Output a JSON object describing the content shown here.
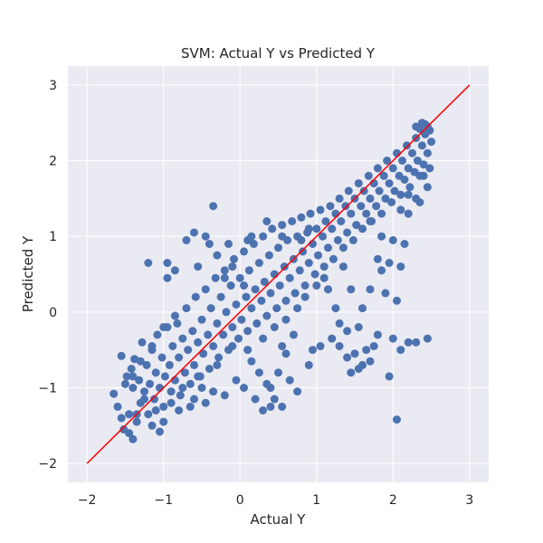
{
  "chart_data": {
    "type": "scatter",
    "title": "SVM: Actual Y vs Predicted Y",
    "xlabel": "Actual Y",
    "ylabel": "Predicted Y",
    "xlim": [
      -2.25,
      3.25
    ],
    "ylim": [
      -2.25,
      3.25
    ],
    "xticks": [
      -2,
      -1,
      0,
      1,
      2,
      3
    ],
    "yticks": [
      -2,
      -1,
      0,
      1,
      2,
      3
    ],
    "xtick_labels": [
      "−2",
      "−1",
      "0",
      "1",
      "2",
      "3"
    ],
    "ytick_labels": [
      "−2",
      "−1",
      "0",
      "1",
      "2",
      "3"
    ],
    "grid": true,
    "colors": {
      "background": "#eaeaf2",
      "grid": "#ffffff",
      "points": "#4c72b0",
      "line": "#ff0000"
    },
    "reference_line": {
      "x": [
        -2,
        3
      ],
      "y": [
        -2,
        3
      ]
    },
    "series": [
      {
        "points": [
          [
            -1.65,
            -1.08
          ],
          [
            -1.6,
            -1.25
          ],
          [
            -1.55,
            -0.58
          ],
          [
            -1.52,
            -1.55
          ],
          [
            -1.48,
            -0.85
          ],
          [
            -1.45,
            -1.35
          ],
          [
            -1.42,
            -0.75
          ],
          [
            -1.4,
            -1.0
          ],
          [
            -1.38,
            -0.62
          ],
          [
            -1.35,
            -1.45
          ],
          [
            -1.32,
            -0.9
          ],
          [
            -1.3,
            -1.2
          ],
          [
            -1.28,
            -0.4
          ],
          [
            -1.25,
            -1.05
          ],
          [
            -1.22,
            -0.7
          ],
          [
            -1.2,
            -1.35
          ],
          [
            -1.18,
            -0.95
          ],
          [
            -1.15,
            -0.5
          ],
          [
            -1.12,
            -1.15
          ],
          [
            -1.1,
            -0.8
          ],
          [
            -1.08,
            -0.3
          ],
          [
            -1.05,
            -1.0
          ],
          [
            -1.02,
            -0.6
          ],
          [
            -1.0,
            -1.25
          ],
          [
            -0.98,
            -0.85
          ],
          [
            -0.95,
            -0.2
          ],
          [
            -0.92,
            -0.7
          ],
          [
            -0.9,
            -1.05
          ],
          [
            -0.88,
            -0.45
          ],
          [
            -0.85,
            -0.9
          ],
          [
            -0.82,
            -0.15
          ],
          [
            -0.8,
            -0.6
          ],
          [
            -0.78,
            -1.1
          ],
          [
            -0.75,
            -0.35
          ],
          [
            -0.72,
            -0.8
          ],
          [
            -0.7,
            0.05
          ],
          [
            -0.68,
            -0.5
          ],
          [
            -0.65,
            -0.95
          ],
          [
            -0.62,
            -0.25
          ],
          [
            -0.6,
            -0.7
          ],
          [
            -0.58,
            0.2
          ],
          [
            -0.55,
            -0.4
          ],
          [
            -0.52,
            -0.85
          ],
          [
            -0.5,
            -0.1
          ],
          [
            -0.48,
            -0.55
          ],
          [
            -0.45,
            0.3
          ],
          [
            -0.42,
            -0.3
          ],
          [
            -0.4,
            -0.75
          ],
          [
            -0.38,
            0.05
          ],
          [
            -0.35,
            -0.45
          ],
          [
            -0.32,
            0.45
          ],
          [
            -0.3,
            -0.15
          ],
          [
            -0.28,
            -0.6
          ],
          [
            -0.25,
            0.2
          ],
          [
            -0.22,
            -0.3
          ],
          [
            -0.2,
            0.55
          ],
          [
            -0.18,
            0.0
          ],
          [
            -0.15,
            -0.5
          ],
          [
            -0.12,
            0.35
          ],
          [
            -0.1,
            -0.2
          ],
          [
            -0.08,
            0.7
          ],
          [
            -0.05,
            0.1
          ],
          [
            -0.02,
            -0.35
          ],
          [
            0.0,
            0.45
          ],
          [
            0.02,
            -0.1
          ],
          [
            0.05,
            0.8
          ],
          [
            0.08,
            0.2
          ],
          [
            0.1,
            -0.25
          ],
          [
            0.12,
            0.55
          ],
          [
            0.15,
            0.05
          ],
          [
            0.18,
            0.9
          ],
          [
            0.2,
            0.3
          ],
          [
            0.22,
            -0.15
          ],
          [
            0.25,
            0.65
          ],
          [
            0.28,
            0.15
          ],
          [
            0.3,
            1.0
          ],
          [
            0.32,
            0.4
          ],
          [
            0.35,
            -0.05
          ],
          [
            0.38,
            0.75
          ],
          [
            0.4,
            0.25
          ],
          [
            0.42,
            1.1
          ],
          [
            0.45,
            0.5
          ],
          [
            0.48,
            0.05
          ],
          [
            0.5,
            0.85
          ],
          [
            0.52,
            0.35
          ],
          [
            0.55,
            1.15
          ],
          [
            0.58,
            0.6
          ],
          [
            0.6,
            0.15
          ],
          [
            0.62,
            0.95
          ],
          [
            0.65,
            0.45
          ],
          [
            0.68,
            1.2
          ],
          [
            0.7,
            0.7
          ],
          [
            0.72,
            0.25
          ],
          [
            0.75,
            1.0
          ],
          [
            0.78,
            0.55
          ],
          [
            0.8,
            1.25
          ],
          [
            0.82,
            0.8
          ],
          [
            0.85,
            0.35
          ],
          [
            0.88,
            1.05
          ],
          [
            0.9,
            0.65
          ],
          [
            0.92,
            1.3
          ],
          [
            0.95,
            0.9
          ],
          [
            0.98,
            0.5
          ],
          [
            1.0,
            1.1
          ],
          [
            1.02,
            0.75
          ],
          [
            1.05,
            1.35
          ],
          [
            1.08,
            1.0
          ],
          [
            1.1,
            0.6
          ],
          [
            1.12,
            1.2
          ],
          [
            1.15,
            0.85
          ],
          [
            1.18,
            1.4
          ],
          [
            1.2,
            1.1
          ],
          [
            1.22,
            0.7
          ],
          [
            1.25,
            1.3
          ],
          [
            1.28,
            0.95
          ],
          [
            1.3,
            1.5
          ],
          [
            1.32,
            1.2
          ],
          [
            1.35,
            0.85
          ],
          [
            1.38,
            1.4
          ],
          [
            1.4,
            1.05
          ],
          [
            1.42,
            1.6
          ],
          [
            1.45,
            1.3
          ],
          [
            1.48,
            0.95
          ],
          [
            1.5,
            1.5
          ],
          [
            1.52,
            1.15
          ],
          [
            1.55,
            1.7
          ],
          [
            1.58,
            1.4
          ],
          [
            1.6,
            1.1
          ],
          [
            1.62,
            1.6
          ],
          [
            1.65,
            1.3
          ],
          [
            1.68,
            1.8
          ],
          [
            1.7,
            1.5
          ],
          [
            1.72,
            1.2
          ],
          [
            1.75,
            1.7
          ],
          [
            1.78,
            1.4
          ],
          [
            1.8,
            1.9
          ],
          [
            1.82,
            1.6
          ],
          [
            1.85,
            1.3
          ],
          [
            1.88,
            1.8
          ],
          [
            1.9,
            1.5
          ],
          [
            1.92,
            2.0
          ],
          [
            1.95,
            1.7
          ],
          [
            1.98,
            1.45
          ],
          [
            2.0,
            1.9
          ],
          [
            2.02,
            1.6
          ],
          [
            2.05,
            2.1
          ],
          [
            2.08,
            1.8
          ],
          [
            2.1,
            1.55
          ],
          [
            2.12,
            2.0
          ],
          [
            2.15,
            1.75
          ],
          [
            2.18,
            2.2
          ],
          [
            2.2,
            1.9
          ],
          [
            2.22,
            1.65
          ],
          [
            2.25,
            2.1
          ],
          [
            2.28,
            1.85
          ],
          [
            2.3,
            2.3
          ],
          [
            2.32,
            2.0
          ],
          [
            2.35,
            1.8
          ],
          [
            2.38,
            2.2
          ],
          [
            2.4,
            1.95
          ],
          [
            2.42,
            2.35
          ],
          [
            2.45,
            2.1
          ],
          [
            2.48,
            1.9
          ],
          [
            2.5,
            2.25
          ],
          [
            2.48,
            2.4
          ],
          [
            2.45,
            2.45
          ],
          [
            2.42,
            2.48
          ],
          [
            2.38,
            2.5
          ],
          [
            2.35,
            2.42
          ],
          [
            2.3,
            2.45
          ],
          [
            -0.35,
            1.4
          ],
          [
            -0.15,
            0.9
          ],
          [
            -0.95,
            0.65
          ],
          [
            -0.7,
            0.95
          ],
          [
            -0.4,
            0.9
          ],
          [
            0.35,
            1.2
          ],
          [
            0.1,
            0.95
          ],
          [
            -0.1,
            0.6
          ],
          [
            0.55,
            1.0
          ],
          [
            0.8,
            0.95
          ],
          [
            0.9,
            1.1
          ],
          [
            1.15,
            0.3
          ],
          [
            1.25,
            0.05
          ],
          [
            1.3,
            -0.45
          ],
          [
            1.4,
            -0.25
          ],
          [
            1.5,
            -0.55
          ],
          [
            1.55,
            -0.2
          ],
          [
            1.45,
            0.3
          ],
          [
            1.35,
            0.6
          ],
          [
            1.6,
            0.05
          ],
          [
            1.65,
            -0.5
          ],
          [
            1.7,
            -0.65
          ],
          [
            1.75,
            -0.45
          ],
          [
            1.6,
            -0.7
          ],
          [
            1.8,
            -0.3
          ],
          [
            1.9,
            0.25
          ],
          [
            2.0,
            -0.35
          ],
          [
            1.95,
            -0.85
          ],
          [
            2.05,
            -1.42
          ],
          [
            2.1,
            -0.5
          ],
          [
            2.2,
            -0.4
          ],
          [
            2.3,
            -0.4
          ],
          [
            2.45,
            -0.35
          ],
          [
            2.05,
            0.15
          ],
          [
            2.1,
            0.6
          ],
          [
            1.95,
            0.65
          ],
          [
            2.0,
            0.95
          ],
          [
            2.15,
            0.9
          ],
          [
            1.85,
            0.55
          ],
          [
            1.7,
            0.3
          ],
          [
            0.4,
            -1.0
          ],
          [
            0.5,
            -0.8
          ],
          [
            0.6,
            -0.55
          ],
          [
            0.65,
            -0.9
          ],
          [
            0.75,
            -1.05
          ],
          [
            0.55,
            -1.25
          ],
          [
            0.45,
            -1.15
          ],
          [
            0.35,
            -0.95
          ],
          [
            0.25,
            -0.8
          ],
          [
            0.15,
            -0.65
          ],
          [
            0.05,
            -1.0
          ],
          [
            0.2,
            -1.15
          ],
          [
            0.4,
            -1.25
          ],
          [
            0.3,
            -1.3
          ],
          [
            -0.05,
            -0.9
          ],
          [
            -0.2,
            -1.1
          ],
          [
            -0.35,
            -1.05
          ],
          [
            -0.5,
            -1.0
          ],
          [
            -0.6,
            -1.15
          ],
          [
            -0.45,
            -1.2
          ],
          [
            0.95,
            -0.5
          ],
          [
            0.9,
            -0.7
          ],
          [
            1.05,
            -0.45
          ],
          [
            1.2,
            -0.35
          ],
          [
            1.3,
            -0.15
          ],
          [
            1.4,
            -0.6
          ],
          [
            1.45,
            -0.8
          ],
          [
            1.55,
            -0.75
          ],
          [
            2.2,
            1.3
          ],
          [
            2.3,
            1.5
          ],
          [
            2.35,
            1.45
          ],
          [
            2.45,
            1.65
          ],
          [
            2.4,
            1.8
          ],
          [
            2.2,
            1.55
          ],
          [
            2.1,
            1.35
          ],
          [
            1.85,
            1.0
          ],
          [
            1.8,
            0.7
          ],
          [
            1.7,
            1.2
          ],
          [
            -1.2,
            0.65
          ],
          [
            -0.95,
            0.45
          ],
          [
            -0.85,
            0.55
          ],
          [
            -0.55,
            0.6
          ],
          [
            -0.3,
            0.75
          ],
          [
            -0.6,
            1.05
          ],
          [
            -0.45,
            1.0
          ],
          [
            -0.2,
            0.45
          ],
          [
            0.05,
            0.35
          ],
          [
            0.15,
            1.0
          ],
          [
            -0.85,
            -0.05
          ],
          [
            -1.0,
            -0.2
          ],
          [
            -1.15,
            -0.45
          ],
          [
            -1.3,
            -0.65
          ],
          [
            -1.4,
            -0.85
          ],
          [
            -1.5,
            -0.95
          ],
          [
            -1.25,
            -1.15
          ],
          [
            -1.1,
            -1.3
          ],
          [
            -1.0,
            -1.45
          ],
          [
            -1.15,
            -1.5
          ],
          [
            -1.05,
            -1.58
          ],
          [
            -1.35,
            -1.35
          ],
          [
            -1.45,
            -1.6
          ],
          [
            -1.55,
            -1.4
          ],
          [
            -1.4,
            -1.68
          ],
          [
            -0.8,
            -1.3
          ],
          [
            -0.65,
            -1.25
          ],
          [
            -0.9,
            -1.2
          ],
          [
            -0.75,
            -1.0
          ],
          [
            -0.55,
            -0.85
          ],
          [
            -0.3,
            -0.7
          ],
          [
            -0.1,
            -0.45
          ],
          [
            0.1,
            -0.5
          ],
          [
            0.3,
            -0.35
          ],
          [
            0.45,
            -0.2
          ],
          [
            0.6,
            -0.1
          ],
          [
            0.75,
            0.05
          ],
          [
            0.85,
            0.2
          ],
          [
            1.0,
            0.35
          ],
          [
            1.1,
            0.45
          ],
          [
            0.7,
            -0.3
          ],
          [
            0.55,
            -0.45
          ]
        ]
      }
    ]
  }
}
